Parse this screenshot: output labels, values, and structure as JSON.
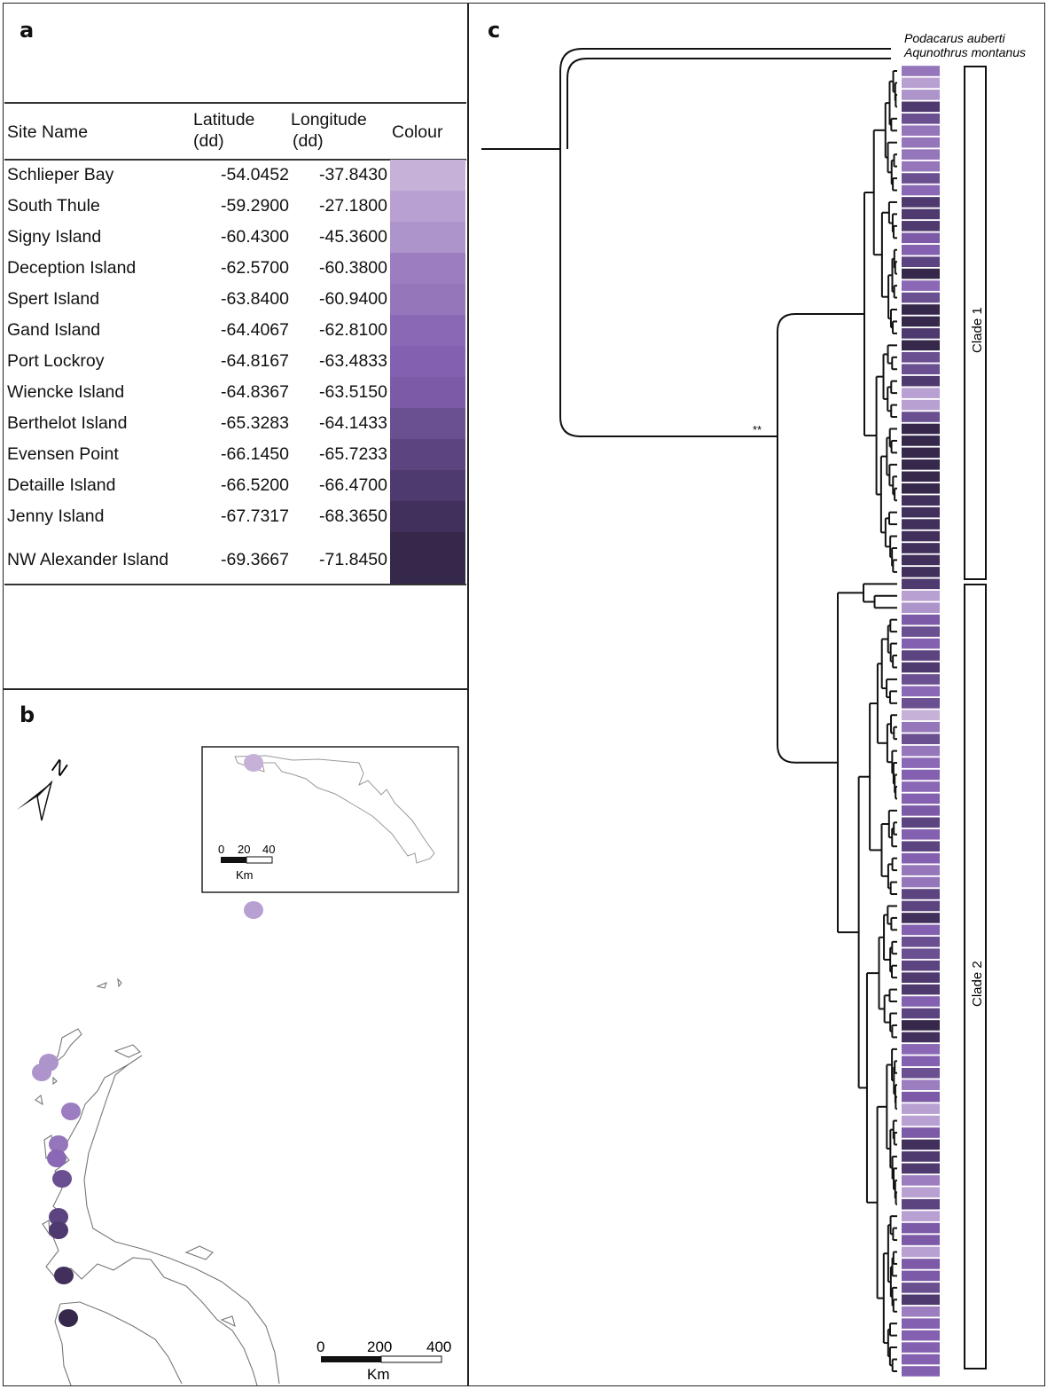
{
  "panels": {
    "a": "a",
    "b": "b",
    "c": "c"
  },
  "table": {
    "headers": {
      "site": "Site Name",
      "lat_line1": "Latitude",
      "lat_line2": "(dd)",
      "lon_line1": "Longitude",
      "lon_line2": "(dd)",
      "colour": "Colour"
    },
    "sites": [
      {
        "name": "Schlieper Bay",
        "lat": "-54.0452",
        "lon": "-37.8430",
        "colour": "#c6b1d9"
      },
      {
        "name": "South Thule",
        "lat": "-59.2900",
        "lon": "-27.1800",
        "colour": "#b9a0d2"
      },
      {
        "name": "Signy Island",
        "lat": "-60.4300",
        "lon": "-45.3600",
        "colour": "#ad94ca"
      },
      {
        "name": "Deception Island",
        "lat": "-62.5700",
        "lon": "-60.3800",
        "colour": "#9c7ec0"
      },
      {
        "name": "Spert Island",
        "lat": "-63.8400",
        "lon": "-60.9400",
        "colour": "#9576bb"
      },
      {
        "name": "Gand Island",
        "lat": "-64.4067",
        "lon": "-62.8100",
        "colour": "#8a68b5"
      },
      {
        "name": "Port Lockroy",
        "lat": "-64.8167",
        "lon": "-63.4833",
        "colour": "#8461b0"
      },
      {
        "name": "Wiencke Island",
        "lat": "-64.8367",
        "lon": "-63.5150",
        "colour": "#7c5aa7"
      },
      {
        "name": "Berthelot Island",
        "lat": "-65.3283",
        "lon": "-64.1433",
        "colour": "#6a4f91"
      },
      {
        "name": "Evensen Point",
        "lat": "-66.1450",
        "lon": "-65.7233",
        "colour": "#5c4480"
      },
      {
        "name": "Detaille Island",
        "lat": "-66.5200",
        "lon": "-66.4700",
        "colour": "#4e3a6e"
      },
      {
        "name": "Jenny Island",
        "lat": "-67.7317",
        "lon": "-68.3650",
        "colour": "#41305b"
      },
      {
        "name": "NW Alexander Island",
        "lat": "-69.3667",
        "lon": "-71.8450",
        "colour": "#35284a"
      }
    ]
  },
  "map": {
    "north_label": "N",
    "inset_scale": {
      "ticks": [
        "0",
        "20",
        "40"
      ],
      "unit": "Km"
    },
    "main_scale": {
      "ticks": [
        "0",
        "200",
        "400"
      ],
      "unit": "Km"
    }
  },
  "tree": {
    "outgroups": [
      "Podacarus auberti",
      "Aqunothrus montanus"
    ],
    "support": "**",
    "clades": [
      "Clade 1",
      "Clade 2"
    ],
    "tip_colour_index": [
      4,
      1,
      2,
      10,
      8,
      4,
      4,
      4,
      4,
      8,
      5,
      10,
      10,
      10,
      7,
      6,
      9,
      12,
      5,
      8,
      12,
      12,
      10,
      12,
      8,
      8,
      10,
      1,
      1,
      8,
      12,
      12,
      12,
      12,
      12,
      12,
      11,
      11,
      11,
      11,
      11,
      11,
      11,
      10,
      1,
      2,
      7,
      8,
      6,
      9,
      10,
      8,
      5,
      8,
      0,
      4,
      8,
      4,
      5,
      6,
      5,
      6,
      7,
      9,
      6,
      9,
      6,
      4,
      4,
      9,
      9,
      11,
      6,
      8,
      8,
      9,
      10,
      10,
      6,
      9,
      12,
      11,
      5,
      6,
      8,
      3,
      7,
      1,
      1,
      7,
      11,
      10,
      10,
      3,
      1,
      9,
      1,
      7,
      7,
      1,
      7,
      7,
      8,
      10,
      3,
      6,
      6,
      6,
      6,
      6
    ]
  }
}
